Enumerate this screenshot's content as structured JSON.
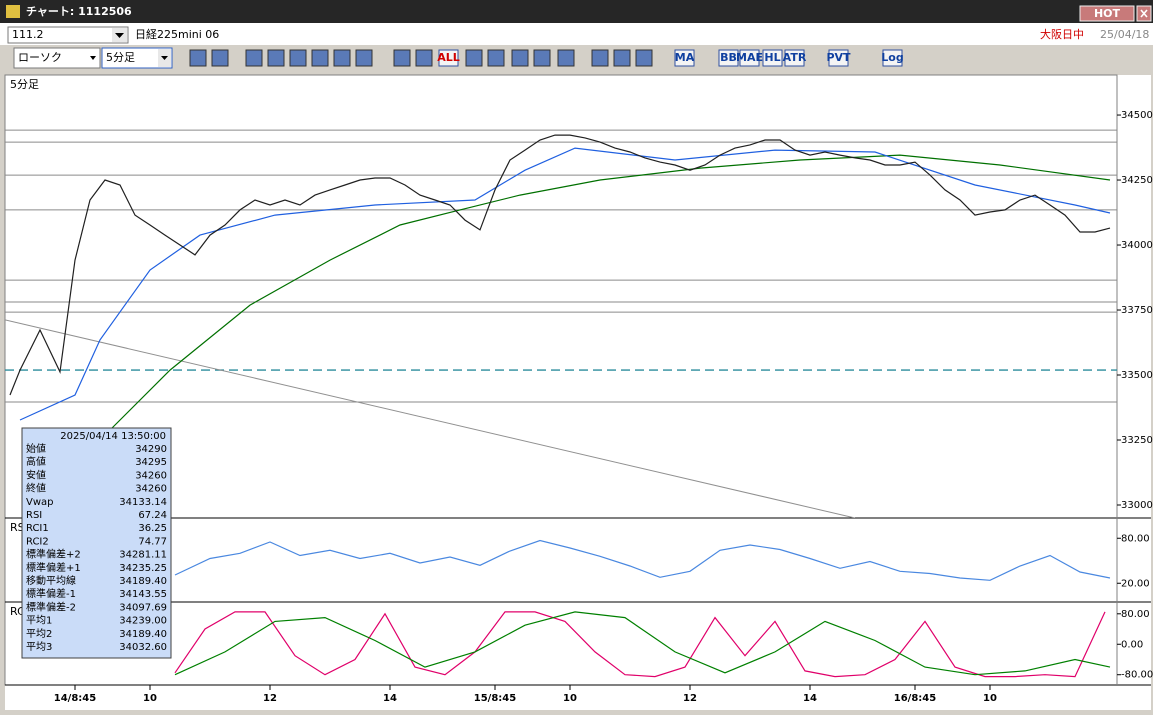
{
  "window": {
    "title": "チャート: 1112506",
    "hot": "HOT"
  },
  "header": {
    "code": "111.2",
    "name": "日経225mini 06",
    "session": "大阪日中",
    "date": "25/04/18"
  },
  "toolbar": {
    "chart_style": "ローソク",
    "interval": "5分足",
    "buttons": [
      "ALL",
      "MA",
      "BB",
      "MAE",
      "HL",
      "ATR",
      "PVT",
      "Log"
    ]
  },
  "chart_data": [
    {
      "type": "line",
      "title": "5分足",
      "xlim": [
        -14,
        208.4
      ],
      "ylim": [
        32950,
        34654
      ],
      "xticks": [
        {
          "value": 0,
          "label": "14/8:45"
        },
        {
          "value": 15,
          "label": "10"
        },
        {
          "value": 39,
          "label": "12"
        },
        {
          "value": 63,
          "label": "14"
        },
        {
          "value": 84,
          "label": "15/8:45"
        },
        {
          "value": 99,
          "label": "10"
        },
        {
          "value": 123,
          "label": "12"
        },
        {
          "value": 147,
          "label": "14"
        },
        {
          "value": 168,
          "label": "16/8:45"
        },
        {
          "value": 183,
          "label": "10"
        }
      ],
      "yticks": [
        33000,
        33250,
        33500,
        33750,
        34000,
        34250,
        34500
      ],
      "hlines": [
        34442,
        34396,
        34269,
        34135,
        33865,
        33781,
        33742,
        33396
      ],
      "dashed_line": 33519,
      "trendline": {
        "x": [
          -14,
          156
        ],
        "values": [
          33712,
          32950
        ]
      },
      "series": [
        {
          "color": "#007000",
          "x": [
            5,
            19,
            35,
            51,
            65,
            77,
            89,
            105,
            125,
            145,
            165,
            185,
            207
          ],
          "values": [
            33250,
            33519,
            33769,
            33942,
            34077,
            34135,
            34192,
            34250,
            34296,
            34327,
            34346,
            34308,
            34250
          ]
        },
        {
          "color": "#2060e0",
          "x": [
            -11,
            0,
            5,
            15,
            25,
            40,
            60,
            80,
            90,
            100,
            120,
            140,
            160,
            180,
            200,
            207
          ],
          "values": [
            33327,
            33423,
            33635,
            33904,
            34038,
            34115,
            34154,
            34173,
            34288,
            34373,
            34327,
            34365,
            34358,
            34231,
            34154,
            34123
          ]
        },
        {
          "color": "#202020",
          "x": [
            -13,
            -11,
            -7,
            -3,
            0,
            3,
            6,
            9,
            12,
            15,
            18,
            21,
            24,
            27,
            30,
            33,
            36,
            39,
            42,
            45,
            48,
            51,
            54,
            57,
            60,
            63,
            66,
            69,
            72,
            75,
            78,
            81,
            84,
            87,
            90,
            93,
            96,
            99,
            102,
            105,
            108,
            111,
            114,
            117,
            120,
            123,
            126,
            129,
            132,
            135,
            138,
            141,
            144,
            147,
            150,
            153,
            156,
            159,
            162,
            165,
            168,
            171,
            174,
            177,
            180,
            183,
            186,
            189,
            192,
            195,
            198,
            201,
            204,
            207
          ],
          "values": [
            33423,
            33519,
            33673,
            33512,
            33942,
            34173,
            34250,
            34231,
            34115,
            34077,
            34038,
            34000,
            33962,
            34038,
            34077,
            34135,
            34173,
            34154,
            34173,
            34154,
            34192,
            34212,
            34231,
            34250,
            34258,
            34258,
            34231,
            34192,
            34173,
            34154,
            34096,
            34058,
            34212,
            34327,
            34365,
            34404,
            34423,
            34423,
            34412,
            34396,
            34373,
            34358,
            34335,
            34319,
            34308,
            34288,
            34308,
            34346,
            34373,
            34385,
            34404,
            34404,
            34365,
            34346,
            34358,
            34346,
            34335,
            34327,
            34308,
            34308,
            34319,
            34269,
            34212,
            34173,
            34115,
            34127,
            34135,
            34173,
            34192,
            34154,
            34115,
            34050,
            34050,
            34065
          ]
        }
      ]
    },
    {
      "type": "line",
      "title": "RSI",
      "xlim": [
        -14,
        208.4
      ],
      "ylim": [
        -5,
        107
      ],
      "yticks": [
        {
          "value": 80,
          "label": "80.00"
        },
        {
          "value": 20,
          "label": "20.00"
        }
      ],
      "series": [
        {
          "color": "#4a88e0",
          "x": [
            20,
            27,
            33,
            39,
            45,
            51,
            57,
            63,
            69,
            75,
            81,
            87,
            93,
            99,
            105,
            111,
            117,
            123,
            129,
            135,
            141,
            147,
            153,
            159,
            165,
            171,
            177,
            183,
            189,
            195,
            201,
            207
          ],
          "values": [
            31,
            53,
            60,
            75,
            57,
            64,
            53,
            60,
            47,
            55,
            44,
            63,
            77,
            67,
            56,
            43,
            28,
            36,
            64,
            71,
            65,
            53,
            40,
            49,
            36,
            33,
            27,
            24,
            43,
            57,
            35,
            27
          ]
        }
      ]
    },
    {
      "type": "line",
      "title": "RCI",
      "xlim": [
        -14,
        208.4
      ],
      "ylim": [
        -107,
        111
      ],
      "yticks": [
        {
          "value": 80,
          "label": "80.00"
        },
        {
          "value": 0,
          "label": "0.00"
        },
        {
          "value": -80,
          "label": "-80.00"
        }
      ],
      "series": [
        {
          "color": "#e0006a",
          "x": [
            20,
            26,
            32,
            38,
            44,
            50,
            56,
            62,
            68,
            74,
            80,
            86,
            92,
            98,
            104,
            110,
            116,
            122,
            128,
            134,
            140,
            146,
            152,
            158,
            164,
            170,
            176,
            182,
            188,
            194,
            200,
            206
          ],
          "values": [
            -75,
            40,
            85,
            85,
            -30,
            -80,
            -40,
            80,
            -60,
            -80,
            -20,
            85,
            85,
            60,
            -20,
            -80,
            -85,
            -60,
            70,
            -30,
            60,
            -70,
            -85,
            -80,
            -40,
            60,
            -60,
            -85,
            -85,
            -80,
            -85,
            85
          ]
        },
        {
          "color": "#008000",
          "x": [
            20,
            30,
            40,
            50,
            60,
            70,
            80,
            90,
            100,
            110,
            120,
            130,
            140,
            150,
            160,
            170,
            180,
            190,
            200,
            207
          ],
          "values": [
            -80,
            -20,
            60,
            70,
            10,
            -60,
            -20,
            50,
            85,
            70,
            -20,
            -75,
            -20,
            60,
            10,
            -60,
            -80,
            -70,
            -40,
            -60
          ]
        }
      ]
    }
  ],
  "info_panel": {
    "datetime": "2025/04/14 13:50:00",
    "rows": [
      {
        "label": "始値",
        "value": "34290",
        "color": "#000000"
      },
      {
        "label": "高値",
        "value": "34295",
        "color": "#000000"
      },
      {
        "label": "安値",
        "value": "34260",
        "color": "#000000"
      },
      {
        "label": "終値",
        "value": "34260",
        "color": "#000000"
      },
      {
        "label": "Vwap",
        "value": "34133.14",
        "color": "#d000d0"
      },
      {
        "label": "RSI",
        "value": "67.24",
        "color": "#5a90e8"
      },
      {
        "label": "RCI1",
        "value": "36.25",
        "color": "#e0006a"
      },
      {
        "label": "RCI2",
        "value": "74.77",
        "color": "#008000"
      },
      {
        "label": "標準偏差+2",
        "value": "34281.11",
        "color": "#8a8a8a"
      },
      {
        "label": "標準偏差+1",
        "value": "34235.25",
        "color": "#8a8a8a"
      },
      {
        "label": "移動平均線",
        "value": "34189.40",
        "color": "#0000c0"
      },
      {
        "label": "標準偏差-1",
        "value": "34143.55",
        "color": "#8a8a8a"
      },
      {
        "label": "標準偏差-2",
        "value": "34097.69",
        "color": "#8a8a8a"
      },
      {
        "label": "平均1",
        "value": "34239.00",
        "color": "#d00000"
      },
      {
        "label": "平均2",
        "value": "34189.40",
        "color": "#2060e0"
      },
      {
        "label": "平均3",
        "value": "34032.60",
        "color": "#007000"
      }
    ]
  }
}
